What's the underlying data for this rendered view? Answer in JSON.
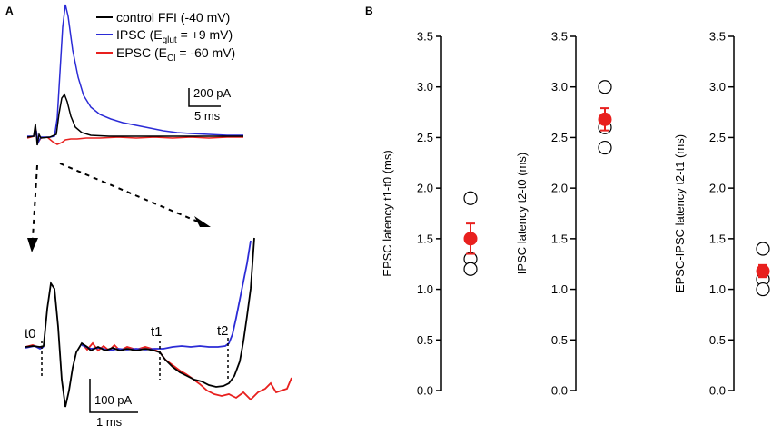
{
  "panel_a": {
    "label": "A",
    "legend": [
      {
        "name": "control FFI (-40 mV)",
        "color": "#000000"
      },
      {
        "name": "IPSC (Eglut = +9 mV)",
        "color": "#2b2bd6",
        "main": "IPSC (E",
        "sub": "glut",
        "rest": " = +9 mV)"
      },
      {
        "name": "EPSC (ECl = -60 mV)",
        "color": "#e8201e",
        "main": "EPSC (E",
        "sub": "Cl",
        "rest": " = -60 mV)"
      }
    ],
    "top_scale": {
      "amplitude": "200 pA",
      "time": "5 ms"
    },
    "bottom_scale": {
      "amplitude": "100 pA",
      "time": "1 ms"
    },
    "markers": [
      "t0",
      "t1",
      "t2"
    ]
  },
  "panel_b": {
    "label": "B",
    "marker_color": "#e8201e"
  },
  "chart_data": [
    {
      "type": "scatter",
      "title": "",
      "ylabel": "EPSC latency t1-t0 (ms)",
      "ylim": [
        0.0,
        3.5
      ],
      "yticks": [
        "0.0",
        "0.5",
        "1.0",
        "1.5",
        "2.0",
        "2.5",
        "3.0",
        "3.5"
      ],
      "individual": [
        1.9,
        1.3,
        1.2
      ],
      "mean": 1.5,
      "error": 0.15
    },
    {
      "type": "scatter",
      "title": "",
      "ylabel": "IPSC latency t2-t0 (ms)",
      "ylim": [
        0.0,
        3.5
      ],
      "yticks": [
        "0.0",
        "0.5",
        "1.0",
        "1.5",
        "2.0",
        "2.5",
        "3.0",
        "3.5"
      ],
      "individual": [
        3.0,
        2.6,
        2.4
      ],
      "mean": 2.68,
      "error": 0.11
    },
    {
      "type": "scatter",
      "title": "",
      "ylabel": "EPSC-IPSC latency t2-t1 (ms)",
      "ylim": [
        0.0,
        3.5
      ],
      "yticks": [
        "0.0",
        "0.5",
        "1.0",
        "1.5",
        "2.0",
        "2.5",
        "3.0",
        "3.5"
      ],
      "individual": [
        1.4,
        1.1,
        1.0
      ],
      "mean": 1.18,
      "error": 0.06
    }
  ]
}
